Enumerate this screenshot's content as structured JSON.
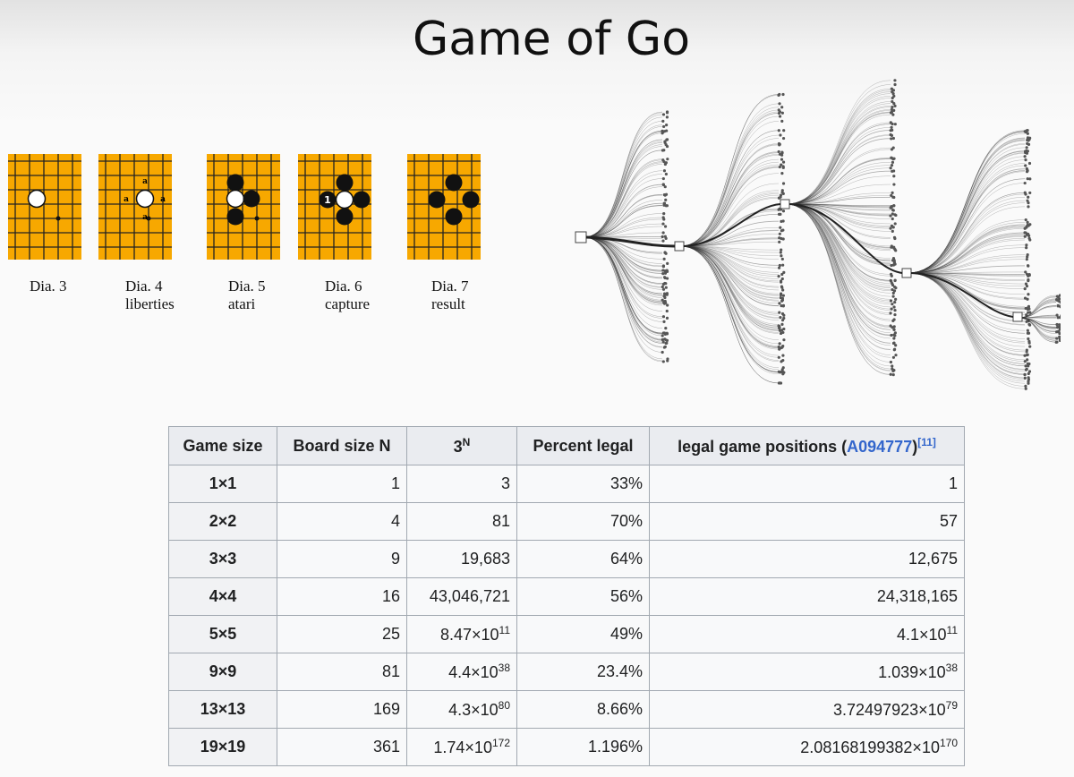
{
  "title": "Game of Go",
  "diagrams": [
    {
      "label": "Dia. 3",
      "sub": ""
    },
    {
      "label": "Dia. 4",
      "sub": "liberties"
    },
    {
      "label": "Dia. 5",
      "sub": "atari"
    },
    {
      "label": "Dia. 6",
      "sub": "capture"
    },
    {
      "label": "Dia. 7",
      "sub": "result"
    }
  ],
  "liberty_mark": "a",
  "capture_move": "1",
  "colors": {
    "board": "#f7a800",
    "grid": "#222222",
    "header_bg": "#eaecf0",
    "link": "#3366cc"
  },
  "table": {
    "headers": {
      "game_size": "Game size",
      "board_size": "Board size N",
      "three_base": "3",
      "three_exp": "N",
      "percent": "Percent legal",
      "legal_prefix": "legal game positions (",
      "legal_link": "A094777",
      "legal_suffix": ")",
      "legal_ref": "[11]"
    },
    "rows": [
      {
        "size": "1×1",
        "n": "1",
        "p_base": "3",
        "p_exp": "",
        "pct": "33%",
        "l_base": "1",
        "l_exp": ""
      },
      {
        "size": "2×2",
        "n": "4",
        "p_base": "81",
        "p_exp": "",
        "pct": "70%",
        "l_base": "57",
        "l_exp": ""
      },
      {
        "size": "3×3",
        "n": "9",
        "p_base": "19,683",
        "p_exp": "",
        "pct": "64%",
        "l_base": "12,675",
        "l_exp": ""
      },
      {
        "size": "4×4",
        "n": "16",
        "p_base": "43,046,721",
        "p_exp": "",
        "pct": "56%",
        "l_base": "24,318,165",
        "l_exp": ""
      },
      {
        "size": "5×5",
        "n": "25",
        "p_base": "8.47×10",
        "p_exp": "11",
        "pct": "49%",
        "l_base": "4.1×10",
        "l_exp": "11"
      },
      {
        "size": "9×9",
        "n": "81",
        "p_base": "4.4×10",
        "p_exp": "38",
        "pct": "23.4%",
        "l_base": "1.039×10",
        "l_exp": "38"
      },
      {
        "size": "13×13",
        "n": "169",
        "p_base": "4.3×10",
        "p_exp": "80",
        "pct": "8.66%",
        "l_base": "3.72497923×10",
        "l_exp": "79"
      },
      {
        "size": "19×19",
        "n": "361",
        "p_base": "1.74×10",
        "p_exp": "172",
        "pct": "1.196%",
        "l_base": "2.08168199382×10",
        "l_exp": "170"
      }
    ]
  }
}
